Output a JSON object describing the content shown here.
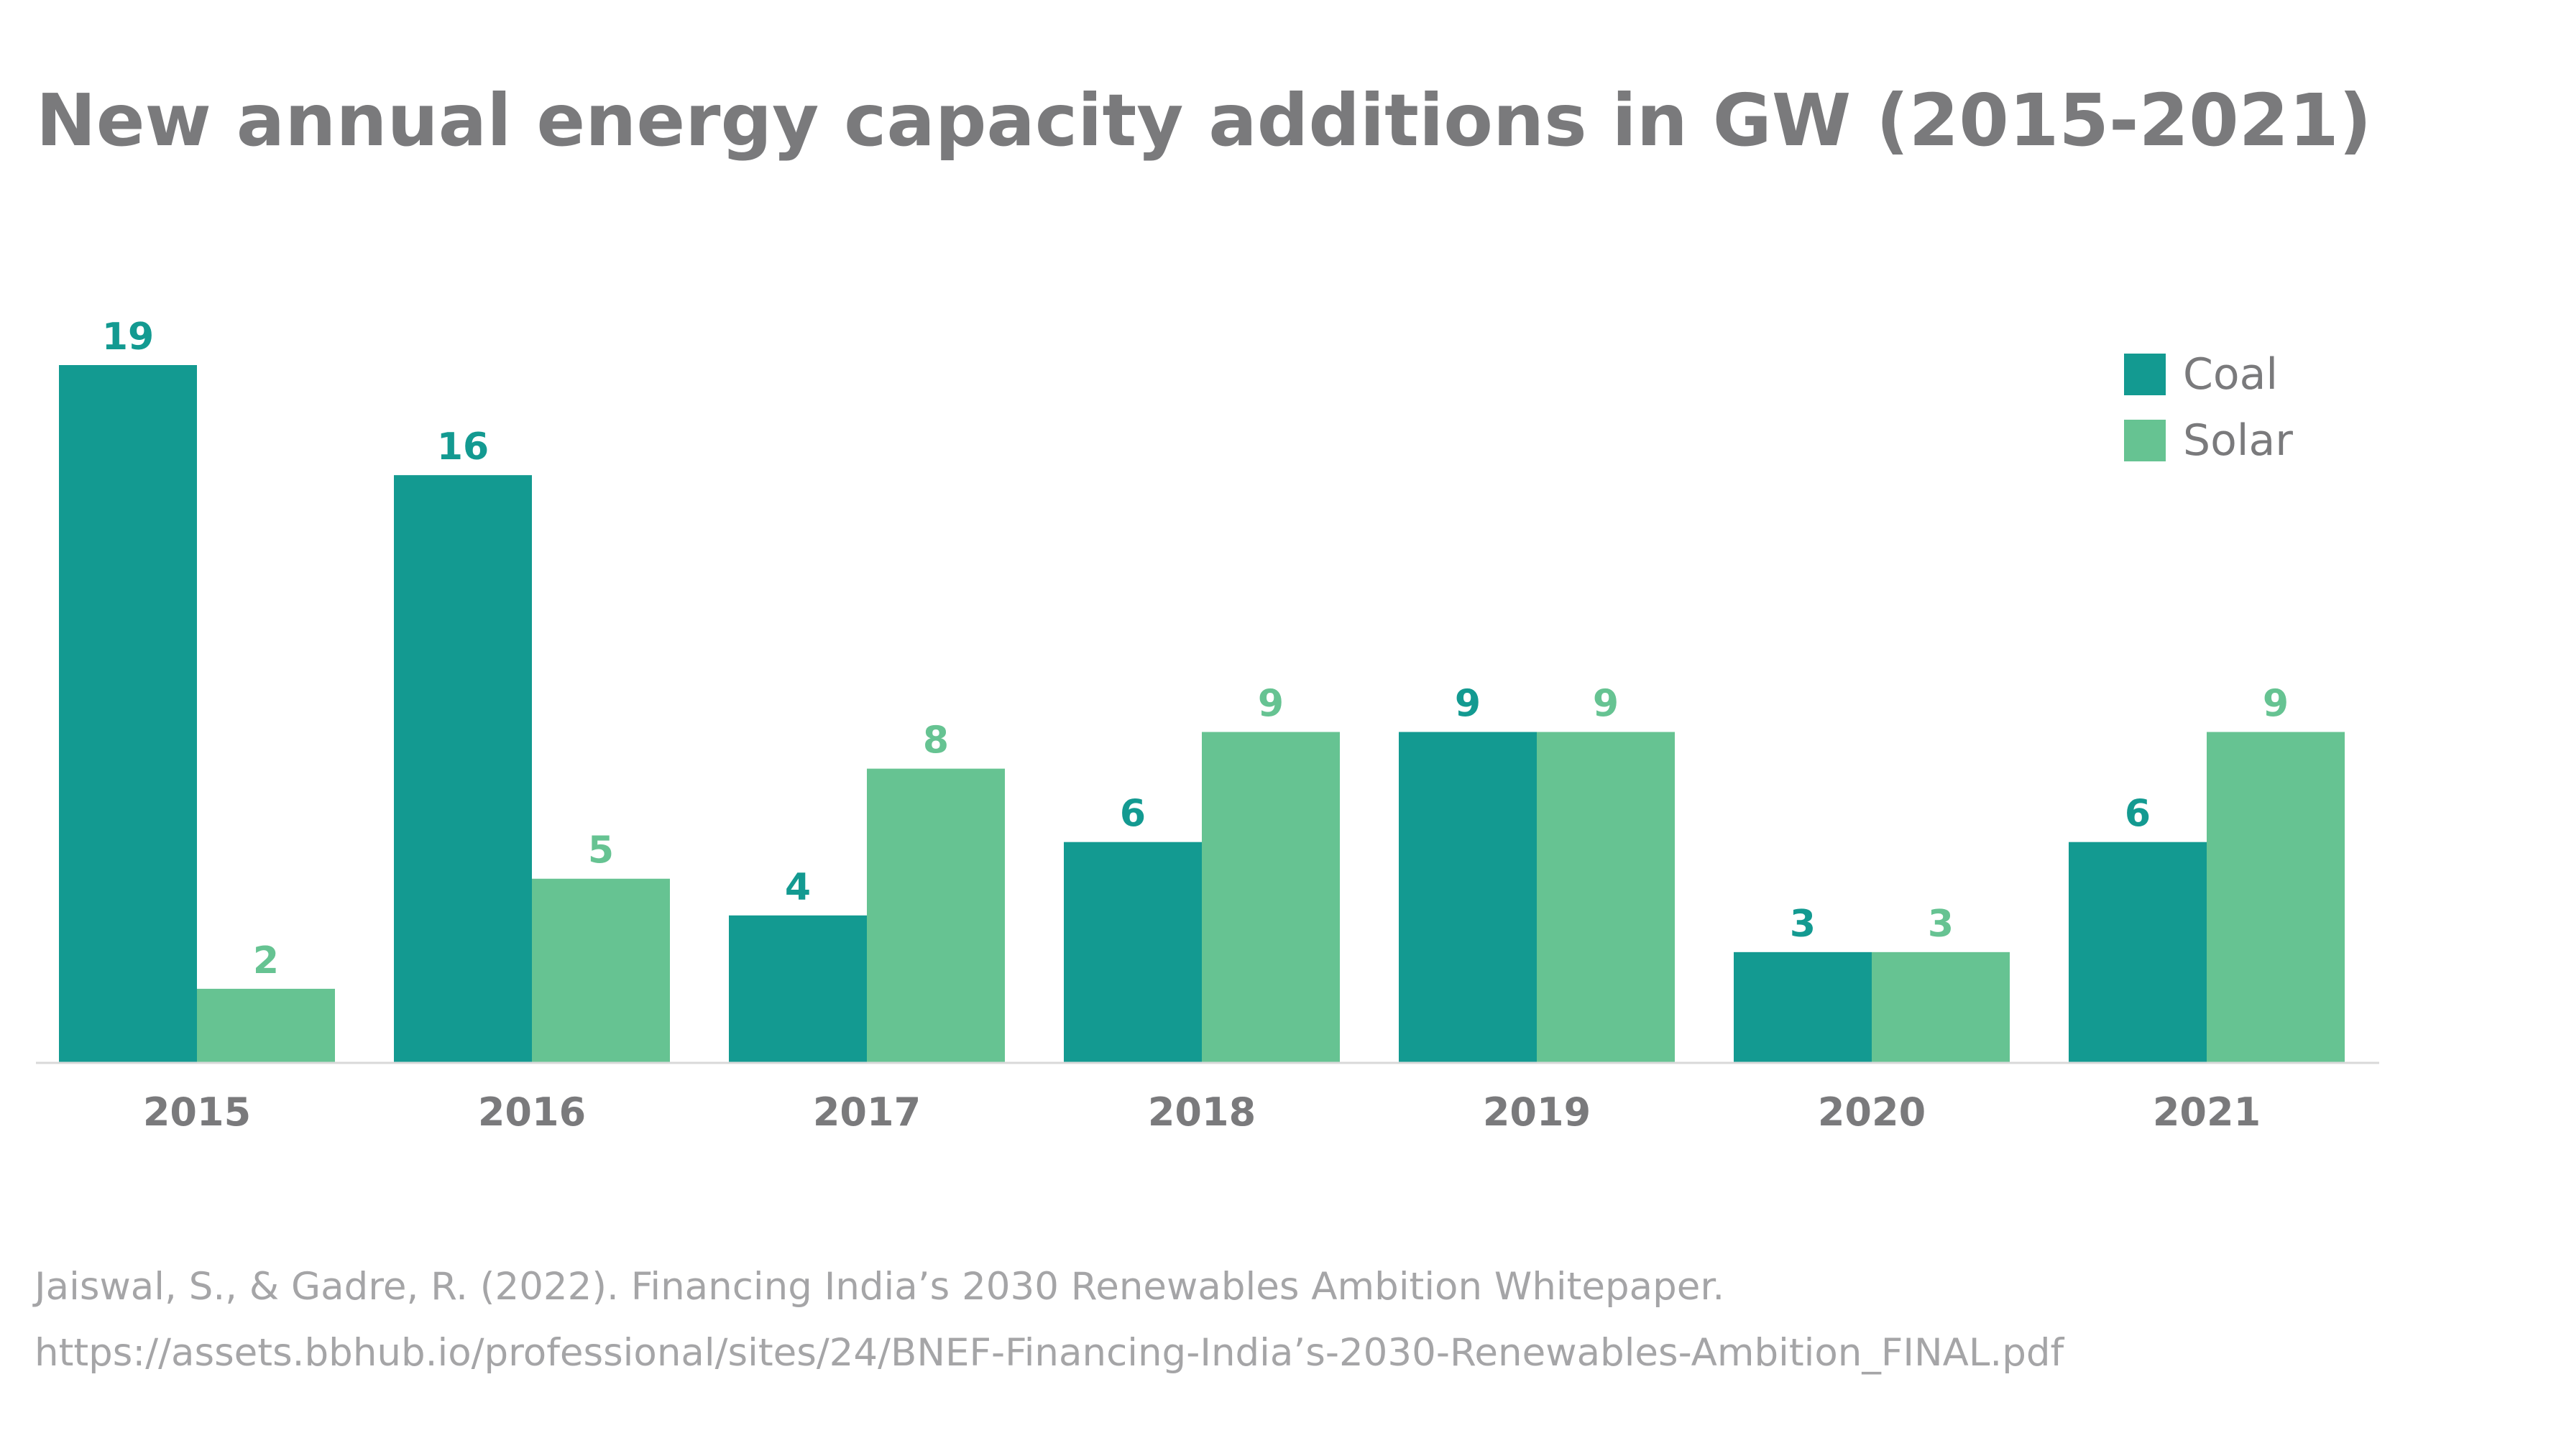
{
  "title": "New annual energy capacity additions in GW (2015-2021)",
  "source": {
    "line1": "Jaiswal, S., & Gadre, R. (2022). Financing India’s 2030 Renewables Ambition Whitepaper.",
    "line2": "https://assets.bbhub.io/professional/sites/24/BNEF-Financing-India’s-2030-Renewables-Ambition_FINAL.pdf"
  },
  "chart_data": {
    "type": "bar",
    "title": "New annual energy capacity additions in GW (2015-2021)",
    "xlabel": "",
    "ylabel": "",
    "categories": [
      "2015",
      "2016",
      "2017",
      "2018",
      "2019",
      "2020",
      "2021"
    ],
    "series": [
      {
        "name": "Coal",
        "color": "#139a91",
        "values": [
          19,
          16,
          4,
          6,
          9,
          3,
          6
        ]
      },
      {
        "name": "Solar",
        "color": "#66c392",
        "values": [
          2,
          5,
          8,
          9,
          9,
          3,
          9
        ]
      }
    ],
    "ylim": [
      0,
      19
    ],
    "grid": false,
    "legend_position": "top-right",
    "data_labels": true
  }
}
